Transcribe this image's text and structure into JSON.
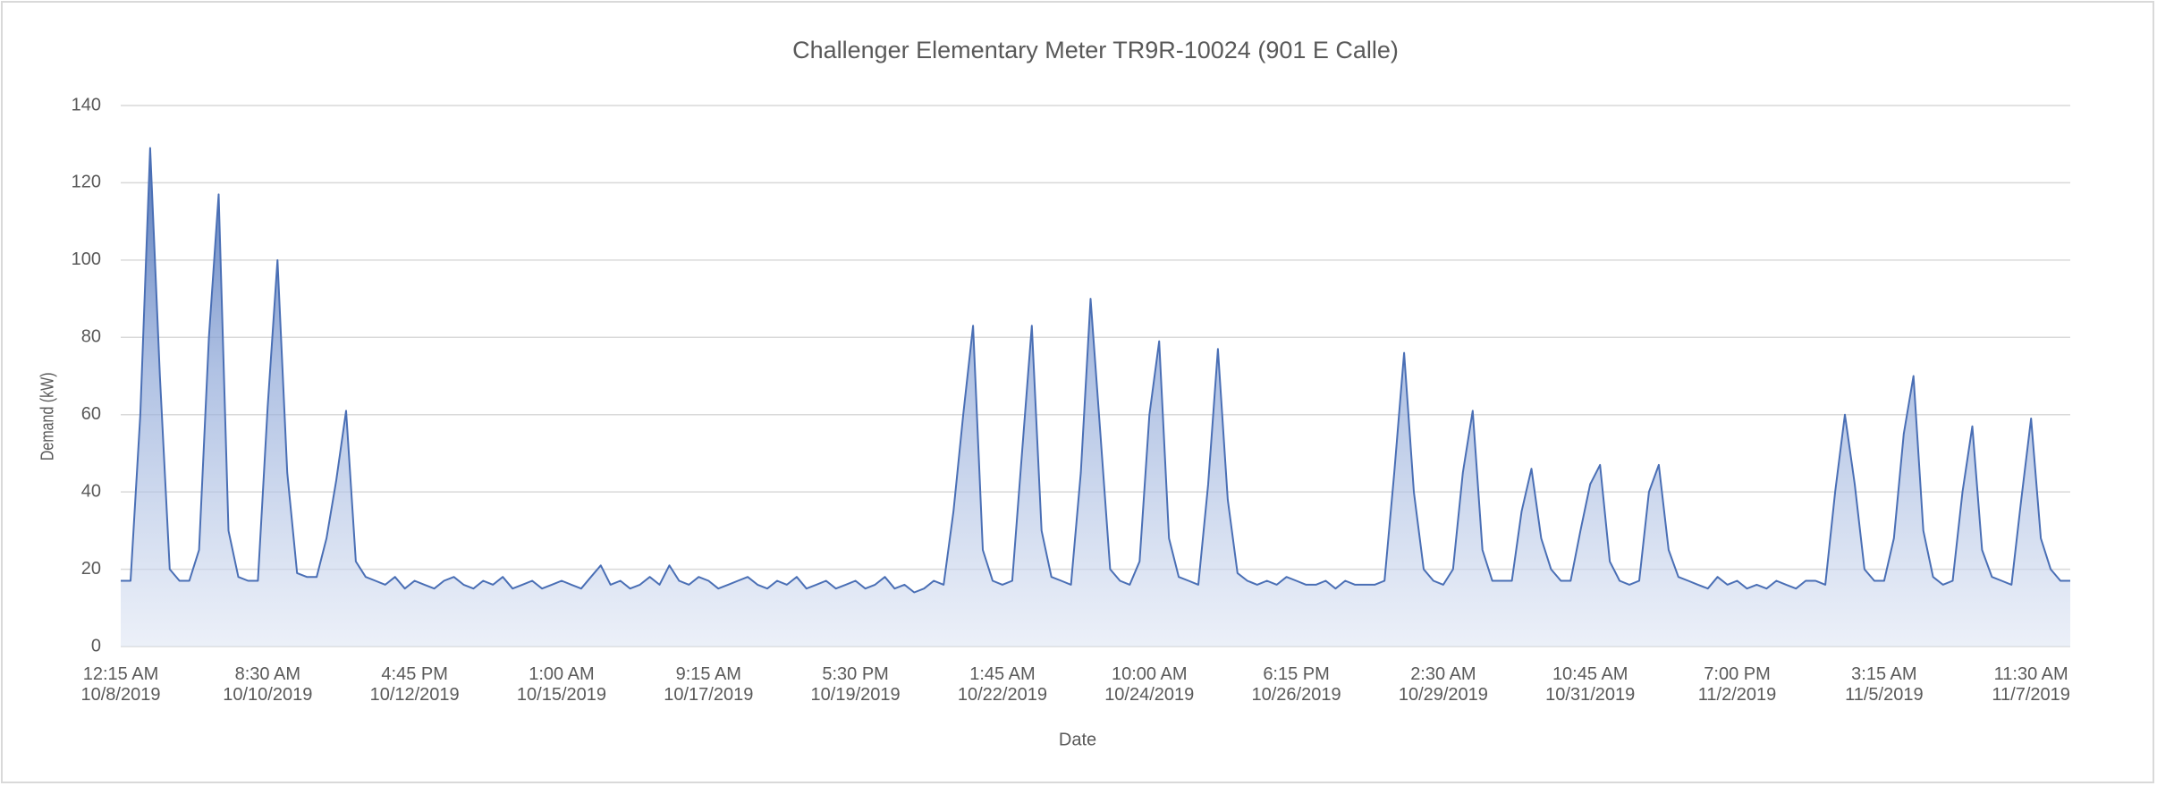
{
  "chart_data": {
    "type": "area",
    "title": "Challenger Elementary Meter TR9R-10024 (901 E Calle)",
    "x_label": "Date",
    "y_label": "Demand (kW)",
    "color": "#4a6fb5",
    "grid": true,
    "ylim": [
      0,
      140
    ],
    "yticks": [
      0,
      20,
      40,
      60,
      80,
      100,
      120,
      140
    ],
    "categories": [
      "12:15 AM\n10/8/2019",
      null,
      null,
      null,
      null,
      null,
      null,
      null,
      null,
      null,
      null,
      null,
      null,
      null,
      null,
      "8:30 AM\n10/10/2019",
      null,
      null,
      null,
      null,
      null,
      null,
      null,
      null,
      null,
      null,
      null,
      null,
      null,
      null,
      "4:45 PM\n10/12/2019",
      null,
      null,
      null,
      null,
      null,
      null,
      null,
      null,
      null,
      null,
      null,
      null,
      null,
      null,
      "1:00 AM\n10/15/2019",
      null,
      null,
      null,
      null,
      null,
      null,
      null,
      null,
      null,
      null,
      null,
      null,
      null,
      null,
      "9:15 AM\n10/17/2019",
      null,
      null,
      null,
      null,
      null,
      null,
      null,
      null,
      null,
      null,
      null,
      null,
      null,
      null,
      "5:30 PM\n10/19/2019",
      null,
      null,
      null,
      null,
      null,
      null,
      null,
      null,
      null,
      null,
      null,
      null,
      null,
      null,
      "1:45 AM\n10/22/2019",
      null,
      null,
      null,
      null,
      null,
      null,
      null,
      null,
      null,
      null,
      null,
      null,
      null,
      null,
      "10:00 AM\n10/24/2019",
      null,
      null,
      null,
      null,
      null,
      null,
      null,
      null,
      null,
      null,
      null,
      null,
      null,
      null,
      "6:15 PM\n10/26/2019",
      null,
      null,
      null,
      null,
      null,
      null,
      null,
      null,
      null,
      null,
      null,
      null,
      null,
      null,
      "2:30 AM\n10/29/2019",
      null,
      null,
      null,
      null,
      null,
      null,
      null,
      null,
      null,
      null,
      null,
      null,
      null,
      null,
      "10:45 AM\n10/31/2019",
      null,
      null,
      null,
      null,
      null,
      null,
      null,
      null,
      null,
      null,
      null,
      null,
      null,
      null,
      "7:00 PM\n11/2/2019",
      null,
      null,
      null,
      null,
      null,
      null,
      null,
      null,
      null,
      null,
      null,
      null,
      null,
      null,
      "3:15 AM\n11/5/2019",
      null,
      null,
      null,
      null,
      null,
      null,
      null,
      null,
      null,
      null,
      null,
      null,
      null,
      null,
      "11:30 AM\n11/7/2019",
      null,
      null,
      null,
      null
    ],
    "values": [
      17,
      17,
      60,
      129,
      70,
      20,
      17,
      17,
      25,
      80,
      117,
      30,
      18,
      17,
      17,
      62,
      100,
      45,
      19,
      18,
      18,
      28,
      43,
      61,
      22,
      18,
      17,
      16,
      18,
      15,
      17,
      16,
      15,
      17,
      18,
      16,
      15,
      17,
      16,
      18,
      15,
      16,
      17,
      15,
      16,
      17,
      16,
      15,
      18,
      21,
      16,
      17,
      15,
      16,
      18,
      16,
      21,
      17,
      16,
      18,
      17,
      15,
      16,
      17,
      18,
      16,
      15,
      17,
      16,
      18,
      15,
      16,
      17,
      15,
      16,
      17,
      15,
      16,
      18,
      15,
      16,
      14,
      15,
      17,
      16,
      35,
      60,
      83,
      25,
      17,
      16,
      17,
      50,
      83,
      30,
      18,
      17,
      16,
      45,
      90,
      55,
      20,
      17,
      16,
      22,
      60,
      79,
      28,
      18,
      17,
      16,
      42,
      77,
      38,
      19,
      17,
      16,
      17,
      16,
      18,
      17,
      16,
      16,
      17,
      15,
      17,
      16,
      16,
      16,
      17,
      45,
      76,
      40,
      20,
      17,
      16,
      20,
      45,
      61,
      25,
      17,
      17,
      17,
      35,
      46,
      28,
      20,
      17,
      17,
      30,
      42,
      47,
      22,
      17,
      16,
      17,
      40,
      47,
      25,
      18,
      17,
      16,
      15,
      18,
      16,
      17,
      15,
      16,
      15,
      17,
      16,
      15,
      17,
      17,
      16,
      40,
      60,
      42,
      20,
      17,
      17,
      28,
      55,
      70,
      30,
      18,
      16,
      17,
      40,
      57,
      25,
      18,
      17,
      16,
      38,
      59,
      28,
      20,
      17,
      17
    ]
  }
}
